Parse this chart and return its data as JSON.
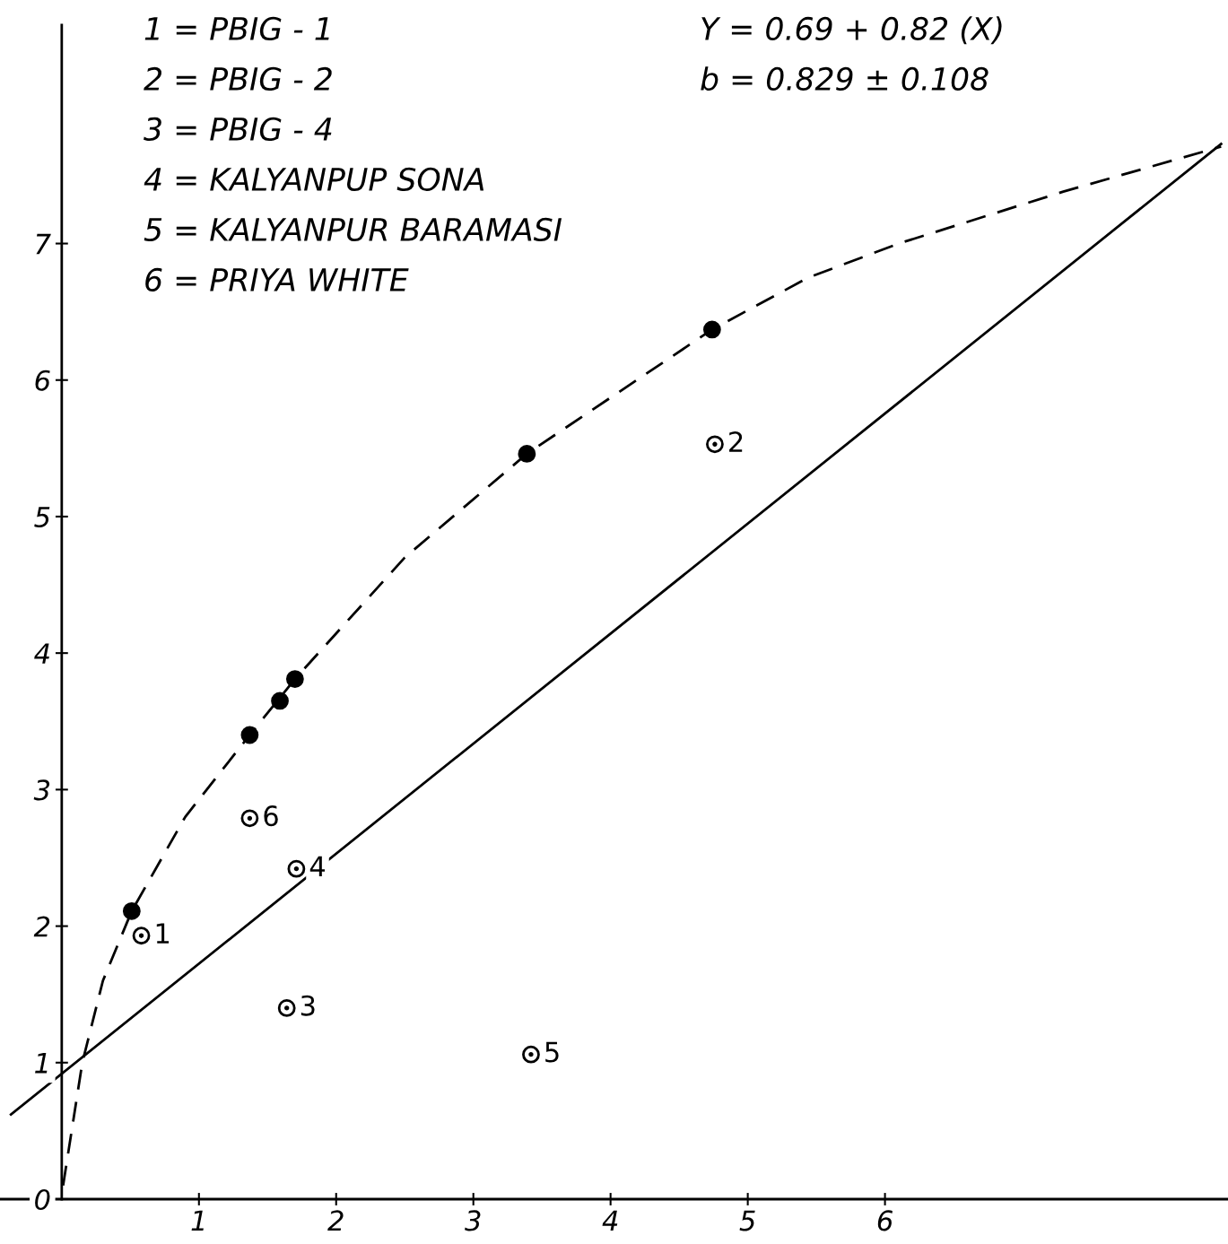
{
  "chart_data": {
    "type": "scatter",
    "xlim": [
      -0.45,
      8.5
    ],
    "ylim": [
      0,
      8.6
    ],
    "xticks": [
      1,
      2,
      3,
      4,
      5,
      6
    ],
    "yticks": [
      0,
      1,
      2,
      3,
      4,
      5,
      6,
      7
    ],
    "grid": false,
    "series": [
      {
        "color": "#000000",
        "marker": "circle",
        "x": [
          0.51,
          1.37,
          1.59,
          1.7,
          3.39,
          4.74
        ],
        "values": [
          2.11,
          3.4,
          3.65,
          3.81,
          5.46,
          6.37
        ]
      },
      {
        "color": "#ffffff",
        "marker": "circle",
        "x": [
          0.58,
          4.76,
          1.64,
          1.71,
          3.42,
          1.37
        ],
        "values": [
          1.93,
          5.53,
          1.4,
          2.42,
          1.06,
          2.79
        ]
      },
      {
        "type": "line",
        "color": "#000000",
        "marker": "none",
        "line_style": "dashed",
        "x": [
          0.01,
          0.15,
          0.3,
          0.51,
          0.9,
          1.37,
          1.7,
          2.5,
          3.39,
          4.74,
          5.44,
          6.1,
          7.3,
          8.45
        ],
        "values": [
          0.1,
          1.0,
          1.6,
          2.11,
          2.8,
          3.4,
          3.81,
          4.7,
          5.46,
          6.37,
          6.75,
          7.0,
          7.38,
          7.71
        ]
      },
      {
        "type": "line",
        "color": "#000000",
        "marker": "none",
        "line_style": "solid",
        "x": [
          -0.37,
          8.45
        ],
        "values": [
          0.62,
          7.73
        ]
      }
    ],
    "annotations": [
      "1 = PBIG - 1",
      "2 = PBIG - 2",
      "3 = PBIG - 4",
      "4 = KALYANPUP SONA",
      "5 = KALYANPUR BARAMASI",
      "6 = PRIYA WHITE",
      "Y = 0.69 + 0.82 (X)",
      "b = 0.829 ± 0.108",
      {
        "text": "1",
        "x": 0.58,
        "y": 1.93
      },
      {
        "text": "2",
        "x": 4.76,
        "y": 5.53
      },
      {
        "text": "3",
        "x": 1.64,
        "y": 1.4
      },
      {
        "text": "4",
        "x": 1.71,
        "y": 2.42
      },
      {
        "text": "5",
        "x": 3.42,
        "y": 1.06
      },
      {
        "text": "6",
        "x": 1.37,
        "y": 2.79
      }
    ]
  }
}
